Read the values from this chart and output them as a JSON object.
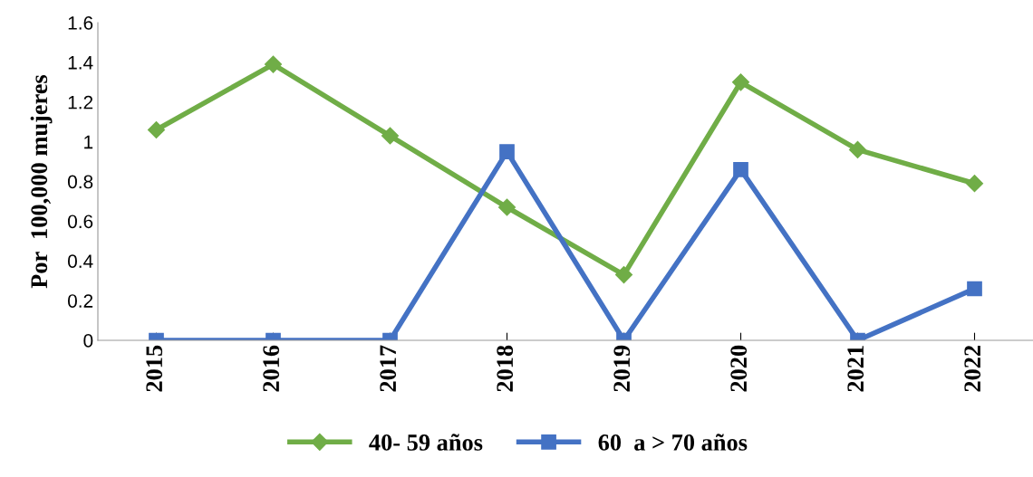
{
  "chart_data": {
    "type": "line",
    "ylabel": "Por  100,000 mujeres",
    "categories": [
      "2015",
      "2016",
      "2017",
      "2018",
      "2019",
      "2020",
      "2021",
      "2022"
    ],
    "series": [
      {
        "name": "40- 59 años",
        "color": "#70ad47",
        "marker": "diamond",
        "values": [
          1.06,
          1.39,
          1.03,
          0.67,
          0.33,
          1.3,
          0.96,
          0.79
        ]
      },
      {
        "name": "60  a > 70 años",
        "color": "#4472c4",
        "marker": "square",
        "values": [
          0,
          0,
          0,
          0.95,
          0,
          0.86,
          0,
          0.26
        ]
      }
    ],
    "ylim": [
      0,
      1.6
    ],
    "yticks": [
      0,
      0.2,
      0.4,
      0.6,
      0.8,
      1,
      1.2,
      1.4,
      1.6
    ],
    "grid": false,
    "legend": "bottom",
    "line_style": "solid"
  }
}
